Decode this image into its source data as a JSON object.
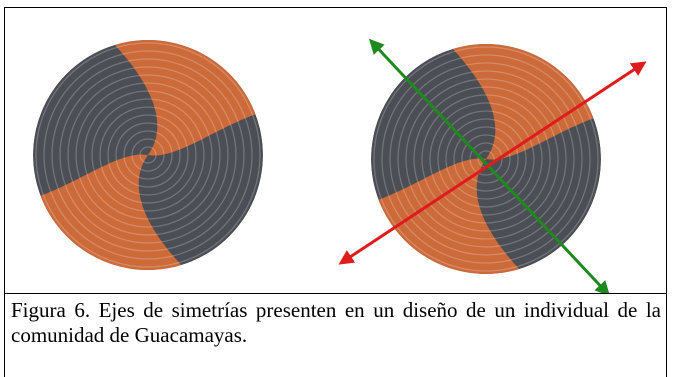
{
  "figure": {
    "caption": "Figura 6. Ejes de simetrías presenten en un diseño de un individual de la comunidad de Guacamayas."
  }
}
